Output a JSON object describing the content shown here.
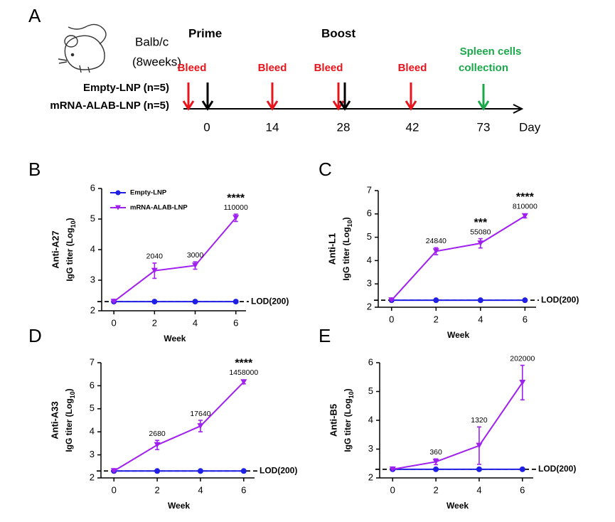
{
  "panel_labels": [
    "A",
    "B",
    "C",
    "D",
    "E"
  ],
  "timeline": {
    "strain": "Balb/c",
    "age": "(8weeks)",
    "phases": [
      "Prime",
      "Boost"
    ],
    "groups": [
      "Empty-LNP (n=5)",
      "mRNA-ALAB-LNP (n=5)"
    ],
    "bleed_labels": [
      "Bleed",
      "Bleed",
      "Bleed",
      "Bleed"
    ],
    "collection_label": [
      "Spleen cells",
      "collection"
    ],
    "days": [
      0,
      14,
      28,
      42,
      73
    ],
    "day_label": "Day"
  },
  "chart_data": [
    {
      "type": "line",
      "title": "Anti-A27",
      "ylabel": [
        "IgG titer (Log",
        "10",
        ")"
      ],
      "xlabel": "Week",
      "xlim": [
        -0.6,
        6.5
      ],
      "xticks": [
        0,
        2,
        4,
        6
      ],
      "ylim": [
        2,
        6
      ],
      "yticks": [
        2,
        3,
        4,
        5,
        6
      ],
      "legend": true,
      "lod": {
        "value": 2.3,
        "label": "LOD(200)"
      },
      "series": [
        {
          "name": "Empty-LNP",
          "color": "#1f1fe6",
          "x": [
            0,
            2,
            4,
            6
          ],
          "values": [
            2.3,
            2.3,
            2.3,
            2.3
          ]
        },
        {
          "name": "mRNA-ALAB-LNP",
          "color": "#a020f0",
          "x": [
            0,
            2,
            4,
            6
          ],
          "values": [
            2.3,
            3.31,
            3.48,
            5.04
          ],
          "errors": [
            0,
            0.25,
            0.12,
            0.12
          ],
          "value_labels": [
            null,
            "2040",
            "3000",
            "110000"
          ],
          "annotations": [
            null,
            null,
            null,
            "****"
          ]
        }
      ]
    },
    {
      "type": "line",
      "title": "Anti-L1",
      "ylabel": [
        "IgG titer (Log",
        "10",
        ")"
      ],
      "xlabel": "Week",
      "xlim": [
        -0.6,
        6.5
      ],
      "xticks": [
        0,
        2,
        4,
        6
      ],
      "ylim": [
        2,
        7
      ],
      "yticks": [
        2,
        3,
        4,
        5,
        6,
        7
      ],
      "legend": false,
      "lod": {
        "value": 2.3,
        "label": "LOD(200)"
      },
      "series": [
        {
          "name": "Empty-LNP",
          "color": "#1f1fe6",
          "x": [
            0,
            2,
            4,
            6
          ],
          "values": [
            2.3,
            2.3,
            2.3,
            2.3
          ]
        },
        {
          "name": "mRNA-ALAB-LNP",
          "color": "#a020f0",
          "x": [
            0,
            2,
            4,
            6
          ],
          "values": [
            2.3,
            4.4,
            4.74,
            5.91
          ],
          "errors": [
            0,
            0.15,
            0.2,
            0.08
          ],
          "value_labels": [
            null,
            "24840",
            "55080",
            "810000"
          ],
          "annotations": [
            null,
            null,
            "***",
            "****"
          ]
        }
      ]
    },
    {
      "type": "line",
      "title": "Anti-A33",
      "ylabel": [
        "IgG titer (Log",
        "10",
        ")"
      ],
      "xlabel": "Week",
      "xlim": [
        -0.6,
        6.5
      ],
      "xticks": [
        0,
        2,
        4,
        6
      ],
      "ylim": [
        2,
        7
      ],
      "yticks": [
        2,
        3,
        4,
        5,
        6,
        7
      ],
      "legend": false,
      "lod": {
        "value": 2.3,
        "label": "LOD(200)"
      },
      "series": [
        {
          "name": "Empty-LNP",
          "color": "#1f1fe6",
          "x": [
            0,
            2,
            4,
            6
          ],
          "values": [
            2.3,
            2.3,
            2.3,
            2.3
          ]
        },
        {
          "name": "mRNA-ALAB-LNP",
          "color": "#a020f0",
          "x": [
            0,
            2,
            4,
            6
          ],
          "values": [
            2.3,
            3.43,
            4.25,
            6.16
          ],
          "errors": [
            0,
            0.2,
            0.25,
            0.08
          ],
          "value_labels": [
            null,
            "2680",
            "17640",
            "1458000"
          ],
          "annotations": [
            null,
            null,
            null,
            "****"
          ]
        }
      ]
    },
    {
      "type": "line",
      "title": "Anti-B5",
      "ylabel": [
        "IgG titer (Log",
        "10",
        ")"
      ],
      "xlabel": "Week",
      "xlim": [
        -0.6,
        6.5
      ],
      "xticks": [
        0,
        2,
        4,
        6
      ],
      "ylim": [
        2,
        6
      ],
      "yticks": [
        2,
        3,
        4,
        5,
        6
      ],
      "legend": false,
      "lod": {
        "value": 2.3,
        "label": "LOD(200)"
      },
      "series": [
        {
          "name": "Empty-LNP",
          "color": "#1f1fe6",
          "x": [
            0,
            2,
            4,
            6
          ],
          "values": [
            2.3,
            2.3,
            2.3,
            2.3
          ]
        },
        {
          "name": "mRNA-ALAB-LNP",
          "color": "#a020f0",
          "x": [
            0,
            2,
            4,
            6
          ],
          "values": [
            2.3,
            2.56,
            3.12,
            5.31
          ],
          "errors": [
            0,
            0.1,
            0.65,
            0.6
          ],
          "value_labels": [
            null,
            "360",
            "1320",
            "202000"
          ]
        }
      ]
    }
  ]
}
